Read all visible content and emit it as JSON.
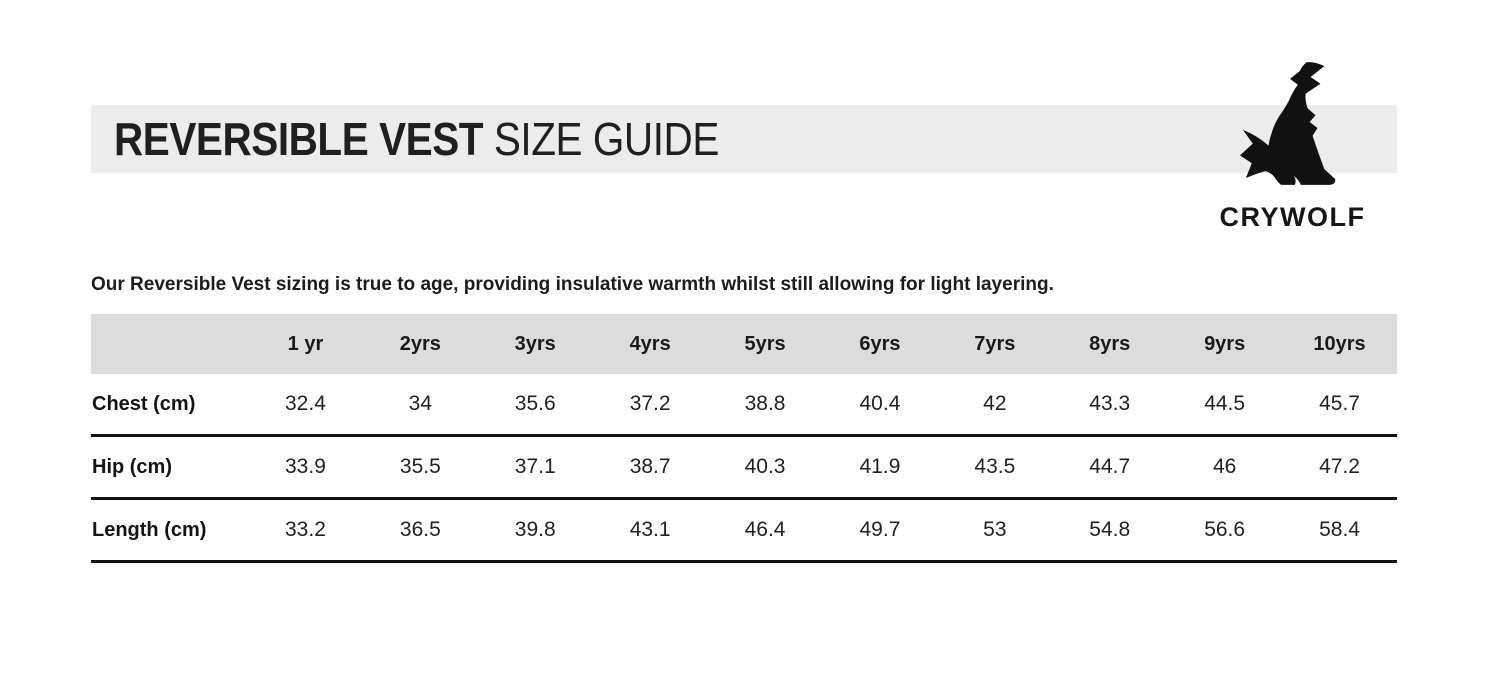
{
  "header": {
    "title_bold": "REVERSIBLE VEST",
    "title_light": " SIZE GUIDE"
  },
  "brand": {
    "name": "CRYWOLF",
    "logo_icon": "howling-wolf-icon"
  },
  "description": "Our Reversible Vest sizing is true to age, providing insulative warmth whilst still allowing for light layering.",
  "colors": {
    "banner_bg": "#ececec",
    "table_header_bg": "#dcdcdc",
    "rule": "#111111",
    "text": "#1e1e1e"
  },
  "table": {
    "columns": [
      "1 yr",
      "2yrs",
      "3yrs",
      "4yrs",
      "5yrs",
      "6yrs",
      "7yrs",
      "8yrs",
      "9yrs",
      "10yrs"
    ],
    "rows": [
      {
        "label": "Chest (cm)",
        "values": [
          "32.4",
          "34",
          "35.6",
          "37.2",
          "38.8",
          "40.4",
          "42",
          "43.3",
          "44.5",
          "45.7"
        ]
      },
      {
        "label": "Hip (cm)",
        "values": [
          "33.9",
          "35.5",
          "37.1",
          "38.7",
          "40.3",
          "41.9",
          "43.5",
          "44.7",
          "46",
          "47.2"
        ]
      },
      {
        "label": "Length (cm)",
        "values": [
          "33.2",
          "36.5",
          "39.8",
          "43.1",
          "46.4",
          "49.7",
          "53",
          "54.8",
          "56.6",
          "58.4"
        ]
      }
    ]
  }
}
